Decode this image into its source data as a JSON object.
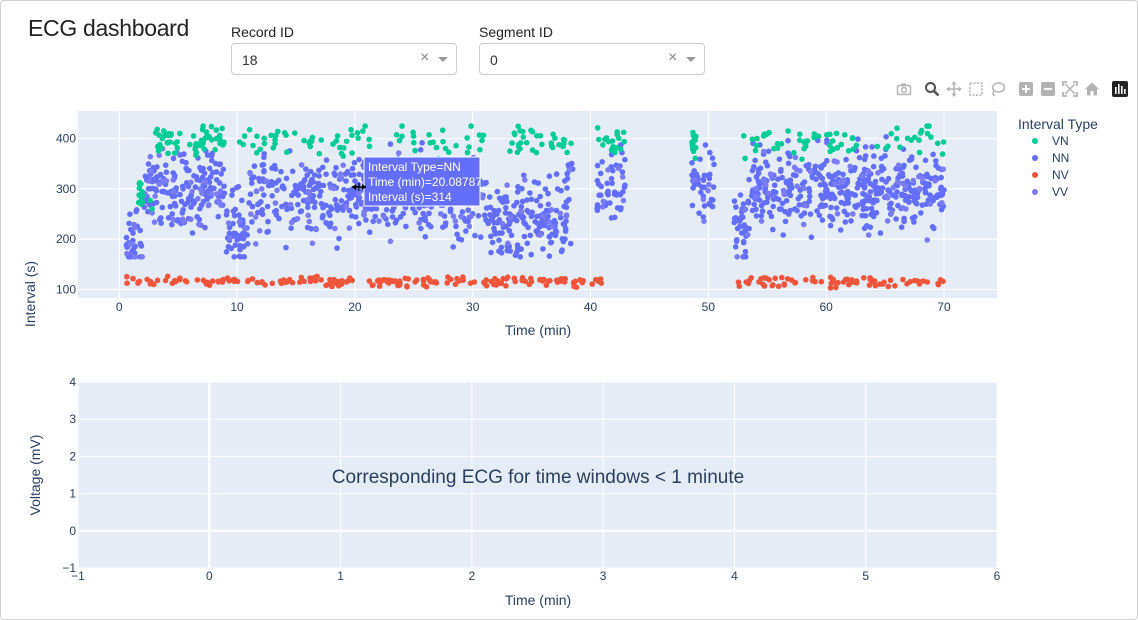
{
  "app": {
    "title": "ECG dashboard"
  },
  "controls": {
    "record": {
      "label": "Record ID",
      "value": "18",
      "clear": "×"
    },
    "segment": {
      "label": "Segment ID",
      "value": "0",
      "clear": "×"
    }
  },
  "modebar": {
    "buttons": [
      "camera-icon",
      "zoom-icon",
      "pan-icon",
      "box-select-icon",
      "lasso-icon",
      "zoom-in-icon",
      "zoom-out-icon",
      "autoscale-icon",
      "home-icon",
      "plotly-logo-icon"
    ]
  },
  "colors": {
    "VN": "#00cc96",
    "NN": "#636efa",
    "NV": "#ef553b",
    "VV": "#7b7cf5",
    "plot_bg": "#e5ecf6"
  },
  "top_plot": {
    "legend_title": "Interval Type",
    "hover": {
      "line1": "Interval Type=NN",
      "line2": "Time (min)=20.08787",
      "line3": "Interval (s)=314"
    }
  },
  "bottom_plot": {
    "annotation": "Corresponding ECG for time windows < 1 minute"
  },
  "chart_data": [
    {
      "type": "scatter",
      "xlabel": "Time (min)",
      "ylabel": "Interval (s)",
      "xlim": [
        -3.5,
        74.5
      ],
      "ylim": [
        83,
        455
      ],
      "x_ticks": [
        "0",
        "10",
        "20",
        "30",
        "40",
        "50",
        "60",
        "70"
      ],
      "y_ticks": [
        "100",
        "200",
        "300",
        "400"
      ],
      "grid": true,
      "legend": "right",
      "legend_title": "Interval Type",
      "series": [
        {
          "name": "VN",
          "x_range": [
            0.5,
            70
          ],
          "y_range": [
            250,
            425
          ],
          "approx_points": 300
        },
        {
          "name": "NN",
          "x_range": [
            0.5,
            70
          ],
          "y_range": [
            160,
            415
          ],
          "approx_points": 2500
        },
        {
          "name": "NV",
          "x_range": [
            0.5,
            70
          ],
          "y_range": [
            105,
            135
          ],
          "approx_points": 350
        },
        {
          "name": "VV",
          "x_range": [
            0.5,
            70
          ],
          "y_range": [
            170,
            400
          ],
          "approx_points": 400
        }
      ]
    },
    {
      "type": "scatter",
      "xlabel": "Time (min)",
      "ylabel": "Voltage (mV)",
      "xlim": [
        -1,
        6
      ],
      "ylim": [
        -1,
        4
      ],
      "x_ticks": [
        "−1",
        "0",
        "1",
        "2",
        "3",
        "4",
        "5",
        "6"
      ],
      "y_ticks": [
        "−1",
        "0",
        "1",
        "2",
        "3",
        "4"
      ],
      "grid": true,
      "series": []
    }
  ]
}
